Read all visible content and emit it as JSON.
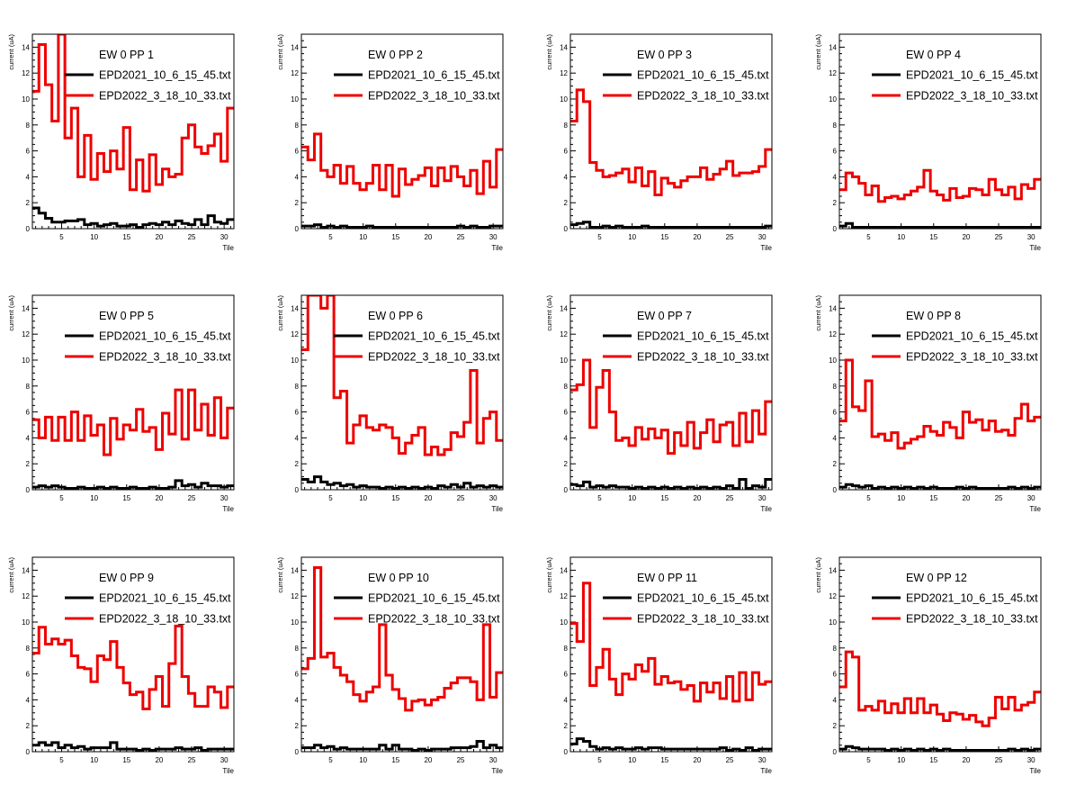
{
  "colors": {
    "red": "#ee0000",
    "black": "#000000",
    "frame": "#000000"
  },
  "axis": {
    "ylabel": "current (uA)",
    "xlabel": "Tile",
    "ylim": [
      0,
      15
    ],
    "xlim": [
      0.5,
      31.5
    ],
    "yticks": [
      0,
      2,
      4,
      6,
      8,
      10,
      12,
      14
    ],
    "xticks": [
      5,
      10,
      15,
      20,
      25,
      30
    ]
  },
  "legend": {
    "series": [
      {
        "name": "EPD2021_10_6_15_45.txt",
        "color": "#000000"
      },
      {
        "name": "EPD2022_3_18_10_33.txt",
        "color": "#ee0000"
      }
    ]
  },
  "chart_data": [
    {
      "type": "histogram-step",
      "title": "EW 0 PP 1",
      "xlabel": "Tile",
      "ylabel": "current (uA)",
      "ylim": [
        0,
        15
      ],
      "series": [
        {
          "name": "EPD2021_10_6_15_45.txt",
          "values": [
            1.6,
            1.2,
            0.8,
            0.5,
            0.5,
            0.6,
            0.6,
            0.7,
            0.3,
            0.4,
            0.2,
            0.3,
            0.4,
            0.2,
            0.2,
            0.3,
            0.1,
            0.3,
            0.4,
            0.3,
            0.5,
            0.3,
            0.6,
            0.4,
            0.3,
            0.7,
            0.3,
            1.0,
            0.5,
            0.4,
            0.7
          ]
        },
        {
          "name": "EPD2022_3_18_10_33.txt",
          "values": [
            10.6,
            14.2,
            11.1,
            8.3,
            15.5,
            7.0,
            9.3,
            4.0,
            7.2,
            3.8,
            5.8,
            4.4,
            6.0,
            4.6,
            7.8,
            3.0,
            5.3,
            2.9,
            5.7,
            3.4,
            4.6,
            4.0,
            4.2,
            7.0,
            8.0,
            6.3,
            5.8,
            6.4,
            7.3,
            5.2,
            9.3
          ]
        }
      ]
    },
    {
      "type": "histogram-step",
      "title": "EW 0 PP 2",
      "xlabel": "Tile",
      "ylabel": "current (uA)",
      "ylim": [
        0,
        15
      ],
      "series": [
        {
          "name": "EPD2021_10_6_15_45.txt",
          "values": [
            0.2,
            0.2,
            0.3,
            0.1,
            0.2,
            0.1,
            0.2,
            0.1,
            0.1,
            0.1,
            0.2,
            0.1,
            0.1,
            0.1,
            0.1,
            0.1,
            0.1,
            0.1,
            0.1,
            0.1,
            0.1,
            0.1,
            0.1,
            0.1,
            0.2,
            0.1,
            0.2,
            0.1,
            0.1,
            0.2,
            0.2
          ]
        },
        {
          "name": "EPD2022_3_18_10_33.txt",
          "values": [
            6.3,
            5.3,
            7.3,
            4.5,
            4.0,
            4.9,
            3.5,
            4.8,
            3.5,
            3.0,
            3.5,
            4.9,
            3.0,
            4.9,
            2.5,
            4.6,
            3.4,
            3.8,
            4.1,
            4.7,
            3.3,
            4.7,
            3.7,
            4.8,
            4.0,
            3.3,
            4.5,
            2.7,
            5.2,
            3.2,
            6.1
          ]
        }
      ]
    },
    {
      "type": "histogram-step",
      "title": "EW 0 PP 3",
      "xlabel": "Tile",
      "ylabel": "current (uA)",
      "ylim": [
        0,
        15
      ],
      "series": [
        {
          "name": "EPD2021_10_6_15_45.txt",
          "values": [
            0.3,
            0.4,
            0.5,
            0.1,
            0.1,
            0.2,
            0.1,
            0.2,
            0.1,
            0.1,
            0.1,
            0.2,
            0.1,
            0.1,
            0.1,
            0.1,
            0.1,
            0.1,
            0.1,
            0.1,
            0.1,
            0.1,
            0.1,
            0.1,
            0.1,
            0.1,
            0.1,
            0.1,
            0.1,
            0.1,
            0.2
          ]
        },
        {
          "name": "EPD2022_3_18_10_33.txt",
          "values": [
            8.3,
            10.7,
            9.8,
            5.1,
            4.5,
            4.0,
            4.1,
            4.3,
            4.6,
            3.6,
            4.7,
            3.3,
            4.4,
            2.6,
            3.9,
            3.5,
            3.2,
            3.7,
            4.0,
            4.0,
            4.7,
            3.8,
            4.2,
            4.6,
            5.2,
            4.1,
            4.3,
            4.3,
            4.4,
            4.8,
            6.1
          ]
        }
      ]
    },
    {
      "type": "histogram-step",
      "title": "EW 0 PP 4",
      "xlabel": "Tile",
      "ylabel": "current (uA)",
      "ylim": [
        0,
        15
      ],
      "series": [
        {
          "name": "EPD2021_10_6_15_45.txt",
          "values": [
            0.2,
            0.4,
            0.1,
            0.1,
            0.1,
            0.1,
            0.1,
            0.1,
            0.1,
            0.1,
            0.1,
            0.1,
            0.1,
            0.1,
            0.1,
            0.1,
            0.1,
            0.1,
            0.1,
            0.1,
            0.1,
            0.1,
            0.1,
            0.1,
            0.1,
            0.1,
            0.1,
            0.1,
            0.1,
            0.1,
            0.1
          ]
        },
        {
          "name": "EPD2022_3_18_10_33.txt",
          "values": [
            3.0,
            4.3,
            4.0,
            3.5,
            2.6,
            3.3,
            2.1,
            2.4,
            2.5,
            2.3,
            2.6,
            2.9,
            3.2,
            4.5,
            2.9,
            2.6,
            2.2,
            3.1,
            2.4,
            2.5,
            3.1,
            3.0,
            2.6,
            3.8,
            3.0,
            2.6,
            3.2,
            2.3,
            3.4,
            3.1,
            3.8
          ]
        }
      ]
    },
    {
      "type": "histogram-step",
      "title": "EW 0 PP 5",
      "xlabel": "Tile",
      "ylabel": "current (uA)",
      "ylim": [
        0,
        15
      ],
      "series": [
        {
          "name": "EPD2021_10_6_15_45.txt",
          "values": [
            0.2,
            0.3,
            0.2,
            0.3,
            0.2,
            0.1,
            0.1,
            0.2,
            0.1,
            0.1,
            0.2,
            0.1,
            0.2,
            0.1,
            0.1,
            0.2,
            0.1,
            0.1,
            0.2,
            0.1,
            0.1,
            0.2,
            0.7,
            0.3,
            0.4,
            0.2,
            0.5,
            0.3,
            0.3,
            0.2,
            0.3
          ]
        },
        {
          "name": "EPD2022_3_18_10_33.txt",
          "values": [
            5.4,
            4.0,
            5.6,
            3.8,
            5.6,
            3.8,
            6.0,
            3.8,
            5.7,
            4.2,
            5.0,
            2.7,
            5.5,
            3.9,
            5.0,
            4.6,
            6.2,
            4.5,
            4.8,
            3.1,
            5.9,
            4.3,
            7.7,
            3.9,
            7.7,
            4.6,
            6.6,
            4.2,
            7.1,
            4.0,
            6.3
          ]
        }
      ]
    },
    {
      "type": "histogram-step",
      "title": "EW 0 PP 6",
      "xlabel": "Tile",
      "ylabel": "current (uA)",
      "ylim": [
        0,
        15
      ],
      "series": [
        {
          "name": "EPD2021_10_6_15_45.txt",
          "values": [
            0.8,
            0.6,
            1.0,
            0.6,
            0.4,
            0.5,
            0.3,
            0.4,
            0.2,
            0.3,
            0.2,
            0.2,
            0.1,
            0.2,
            0.1,
            0.2,
            0.1,
            0.2,
            0.1,
            0.2,
            0.1,
            0.3,
            0.2,
            0.4,
            0.2,
            0.5,
            0.2,
            0.3,
            0.2,
            0.3,
            0.2
          ]
        },
        {
          "name": "EPD2022_3_18_10_33.txt",
          "values": [
            10.8,
            15.5,
            15.5,
            14.0,
            15.5,
            7.1,
            7.6,
            3.6,
            5.0,
            5.7,
            4.8,
            4.6,
            5.0,
            4.8,
            4.0,
            2.8,
            3.6,
            4.2,
            4.8,
            2.7,
            3.3,
            2.7,
            3.1,
            4.4,
            4.1,
            5.2,
            9.2,
            3.6,
            5.5,
            6.0,
            3.8
          ]
        }
      ]
    },
    {
      "type": "histogram-step",
      "title": "EW 0 PP 7",
      "xlabel": "Tile",
      "ylabel": "current (uA)",
      "ylim": [
        0,
        15
      ],
      "series": [
        {
          "name": "EPD2021_10_6_15_45.txt",
          "values": [
            0.4,
            0.3,
            0.6,
            0.2,
            0.3,
            0.2,
            0.3,
            0.2,
            0.2,
            0.1,
            0.2,
            0.1,
            0.2,
            0.1,
            0.2,
            0.1,
            0.2,
            0.1,
            0.2,
            0.1,
            0.2,
            0.1,
            0.2,
            0.1,
            0.3,
            0.1,
            0.8,
            0.1,
            0.3,
            0.2,
            0.8
          ]
        },
        {
          "name": "EPD2022_3_18_10_33.txt",
          "values": [
            7.7,
            8.1,
            10.0,
            4.8,
            7.9,
            9.2,
            6.0,
            3.8,
            4.0,
            3.4,
            4.8,
            3.9,
            4.7,
            4.0,
            4.6,
            2.8,
            4.4,
            3.4,
            5.2,
            3.2,
            4.4,
            5.4,
            3.7,
            5.0,
            5.2,
            3.4,
            5.9,
            3.7,
            6.1,
            4.3,
            6.8
          ]
        }
      ]
    },
    {
      "type": "histogram-step",
      "title": "EW 0 PP 8",
      "xlabel": "Tile",
      "ylabel": "current (uA)",
      "ylim": [
        0,
        15
      ],
      "series": [
        {
          "name": "EPD2021_10_6_15_45.txt",
          "values": [
            0.2,
            0.4,
            0.3,
            0.2,
            0.3,
            0.1,
            0.2,
            0.1,
            0.2,
            0.1,
            0.2,
            0.1,
            0.2,
            0.1,
            0.2,
            0.1,
            0.1,
            0.1,
            0.2,
            0.1,
            0.2,
            0.1,
            0.1,
            0.1,
            0.1,
            0.1,
            0.2,
            0.1,
            0.2,
            0.1,
            0.2
          ]
        },
        {
          "name": "EPD2022_3_18_10_33.txt",
          "values": [
            5.3,
            10.0,
            6.4,
            6.1,
            8.4,
            4.1,
            4.3,
            3.8,
            4.4,
            3.2,
            3.6,
            3.9,
            4.1,
            4.9,
            4.5,
            4.2,
            5.2,
            4.8,
            4.0,
            6.0,
            5.2,
            5.4,
            4.6,
            5.3,
            4.5,
            4.6,
            4.2,
            5.5,
            6.6,
            5.3,
            5.6
          ]
        }
      ]
    },
    {
      "type": "histogram-step",
      "title": "EW 0 PP 9",
      "xlabel": "Tile",
      "ylabel": "current (uA)",
      "ylim": [
        0,
        15
      ],
      "series": [
        {
          "name": "EPD2021_10_6_15_45.txt",
          "values": [
            0.5,
            0.7,
            0.5,
            0.7,
            0.3,
            0.5,
            0.3,
            0.4,
            0.2,
            0.3,
            0.3,
            0.3,
            0.7,
            0.2,
            0.2,
            0.2,
            0.1,
            0.2,
            0.1,
            0.2,
            0.2,
            0.2,
            0.3,
            0.2,
            0.2,
            0.3,
            0.1,
            0.2,
            0.2,
            0.2,
            0.2
          ]
        },
        {
          "name": "EPD2022_3_18_10_33.txt",
          "values": [
            7.6,
            9.6,
            8.3,
            8.7,
            8.3,
            8.6,
            7.4,
            6.5,
            6.4,
            5.4,
            7.4,
            7.1,
            8.5,
            6.5,
            5.3,
            4.4,
            4.6,
            3.3,
            4.8,
            5.8,
            3.5,
            6.8,
            9.7,
            5.8,
            4.5,
            3.5,
            3.5,
            5.0,
            4.6,
            3.4,
            5.0
          ]
        }
      ]
    },
    {
      "type": "histogram-step",
      "title": "EW 0 PP 10",
      "xlabel": "Tile",
      "ylabel": "current (uA)",
      "ylim": [
        0,
        15
      ],
      "series": [
        {
          "name": "EPD2021_10_6_15_45.txt",
          "values": [
            0.3,
            0.3,
            0.5,
            0.3,
            0.4,
            0.2,
            0.3,
            0.2,
            0.2,
            0.2,
            0.2,
            0.2,
            0.5,
            0.2,
            0.5,
            0.2,
            0.2,
            0.1,
            0.2,
            0.1,
            0.2,
            0.2,
            0.2,
            0.3,
            0.3,
            0.3,
            0.4,
            0.8,
            0.3,
            0.5,
            0.3
          ]
        },
        {
          "name": "EPD2022_3_18_10_33.txt",
          "values": [
            6.4,
            7.2,
            14.2,
            7.3,
            7.6,
            6.5,
            5.9,
            5.4,
            4.4,
            3.9,
            4.6,
            5.0,
            9.8,
            5.9,
            4.8,
            4.1,
            3.2,
            3.9,
            4.0,
            3.6,
            4.0,
            4.2,
            4.9,
            5.3,
            5.7,
            5.7,
            5.4,
            4.0,
            9.8,
            4.2,
            6.1
          ]
        }
      ]
    },
    {
      "type": "histogram-step",
      "title": "EW 0 PP 11",
      "xlabel": "Tile",
      "ylabel": "current (uA)",
      "ylim": [
        0,
        15
      ],
      "series": [
        {
          "name": "EPD2021_10_6_15_45.txt",
          "values": [
            0.6,
            1.0,
            0.8,
            0.4,
            0.2,
            0.3,
            0.2,
            0.3,
            0.2,
            0.2,
            0.3,
            0.2,
            0.3,
            0.3,
            0.2,
            0.2,
            0.2,
            0.2,
            0.2,
            0.2,
            0.2,
            0.2,
            0.2,
            0.3,
            0.1,
            0.2,
            0.1,
            0.3,
            0.1,
            0.2,
            0.2
          ]
        },
        {
          "name": "EPD2022_3_18_10_33.txt",
          "values": [
            9.9,
            8.5,
            13.0,
            5.1,
            6.5,
            7.9,
            5.6,
            4.4,
            6.0,
            5.6,
            6.7,
            6.2,
            7.2,
            5.2,
            5.8,
            5.3,
            5.4,
            4.8,
            5.1,
            3.9,
            5.3,
            4.6,
            5.3,
            4.1,
            5.8,
            3.9,
            6.1,
            4.0,
            6.1,
            5.2,
            5.4
          ]
        }
      ]
    },
    {
      "type": "histogram-step",
      "title": "EW 0 PP 12",
      "xlabel": "Tile",
      "ylabel": "current (uA)",
      "ylim": [
        0,
        15
      ],
      "series": [
        {
          "name": "EPD2021_10_6_15_45.txt",
          "values": [
            0.2,
            0.4,
            0.3,
            0.2,
            0.2,
            0.2,
            0.2,
            0.1,
            0.2,
            0.1,
            0.2,
            0.1,
            0.2,
            0.1,
            0.2,
            0.1,
            0.2,
            0.1,
            0.1,
            0.1,
            0.1,
            0.1,
            0.1,
            0.1,
            0.1,
            0.1,
            0.2,
            0.1,
            0.2,
            0.1,
            0.2
          ]
        },
        {
          "name": "EPD2022_3_18_10_33.txt",
          "values": [
            5.0,
            7.7,
            7.3,
            3.2,
            3.5,
            3.2,
            3.9,
            3.0,
            3.7,
            3.0,
            4.1,
            3.0,
            4.1,
            3.0,
            3.6,
            2.9,
            2.4,
            3.0,
            2.9,
            2.5,
            2.8,
            2.3,
            2.0,
            2.6,
            4.2,
            3.3,
            4.2,
            3.2,
            3.6,
            3.8,
            4.6
          ]
        }
      ]
    }
  ]
}
